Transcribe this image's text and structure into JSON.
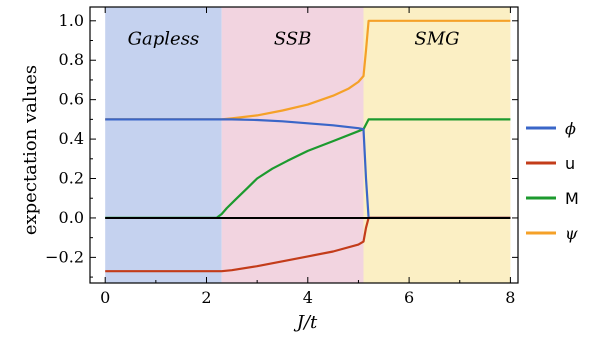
{
  "chart_data": {
    "type": "line",
    "xlabel": "J/t",
    "ylabel": "expectation values",
    "xlim": [
      -0.3,
      8.15
    ],
    "ylim": [
      -0.33,
      1.07
    ],
    "xticks": [
      0,
      2,
      4,
      6,
      8
    ],
    "yticks": [
      -0.2,
      0.0,
      0.2,
      0.4,
      0.6,
      0.8,
      1.0
    ],
    "ytick_labels": [
      "−0.2",
      "0.0",
      "0.2",
      "0.4",
      "0.6",
      "0.8",
      "1.0"
    ],
    "zero_line": true,
    "legend_position": "right",
    "regions": [
      {
        "label": "Gapless",
        "x": [
          0,
          2.3
        ],
        "color": "#c5d2ef"
      },
      {
        "label": "SSB",
        "x": [
          2.3,
          5.1
        ],
        "color": "#f2d4e0"
      },
      {
        "label": "SMG",
        "x": [
          5.1,
          8.0
        ],
        "color": "#fbefc4"
      }
    ],
    "series": [
      {
        "name": "ϕ",
        "color": "#3a66c8",
        "x": [
          0,
          1,
          2.3,
          2.5,
          3,
          3.5,
          4,
          4.5,
          5.0,
          5.1,
          5.15,
          5.2,
          6,
          8
        ],
        "y": [
          0.5,
          0.5,
          0.5,
          0.5,
          0.497,
          0.49,
          0.48,
          0.47,
          0.455,
          0.45,
          0.2,
          0.0,
          0.0,
          0.0
        ]
      },
      {
        "name": "u",
        "color": "#c33c1a",
        "x": [
          0,
          1,
          2.3,
          2.5,
          3,
          3.5,
          4,
          4.5,
          5.0,
          5.1,
          5.15,
          5.2,
          6,
          8
        ],
        "y": [
          -0.27,
          -0.27,
          -0.27,
          -0.265,
          -0.245,
          -0.22,
          -0.195,
          -0.17,
          -0.135,
          -0.12,
          -0.05,
          0.0,
          0.0,
          0.0
        ]
      },
      {
        "name": "M",
        "color": "#1c9a2e",
        "x": [
          0,
          1,
          2.2,
          2.3,
          2.4,
          2.6,
          2.8,
          3.0,
          3.3,
          3.6,
          4.0,
          4.5,
          5.0,
          5.1,
          5.2,
          6,
          8
        ],
        "y": [
          0.0,
          0.0,
          0.0,
          0.02,
          0.05,
          0.1,
          0.15,
          0.2,
          0.25,
          0.29,
          0.34,
          0.39,
          0.44,
          0.45,
          0.5,
          0.5,
          0.5
        ]
      },
      {
        "name": "ψ",
        "color": "#f5a128",
        "x": [
          0,
          1,
          2.3,
          2.5,
          3,
          3.5,
          4,
          4.5,
          4.8,
          5.0,
          5.1,
          5.15,
          5.2,
          6,
          8
        ],
        "y": [
          0.5,
          0.5,
          0.5,
          0.505,
          0.52,
          0.545,
          0.575,
          0.62,
          0.655,
          0.69,
          0.72,
          0.85,
          1.0,
          1.0,
          1.0
        ]
      }
    ]
  }
}
